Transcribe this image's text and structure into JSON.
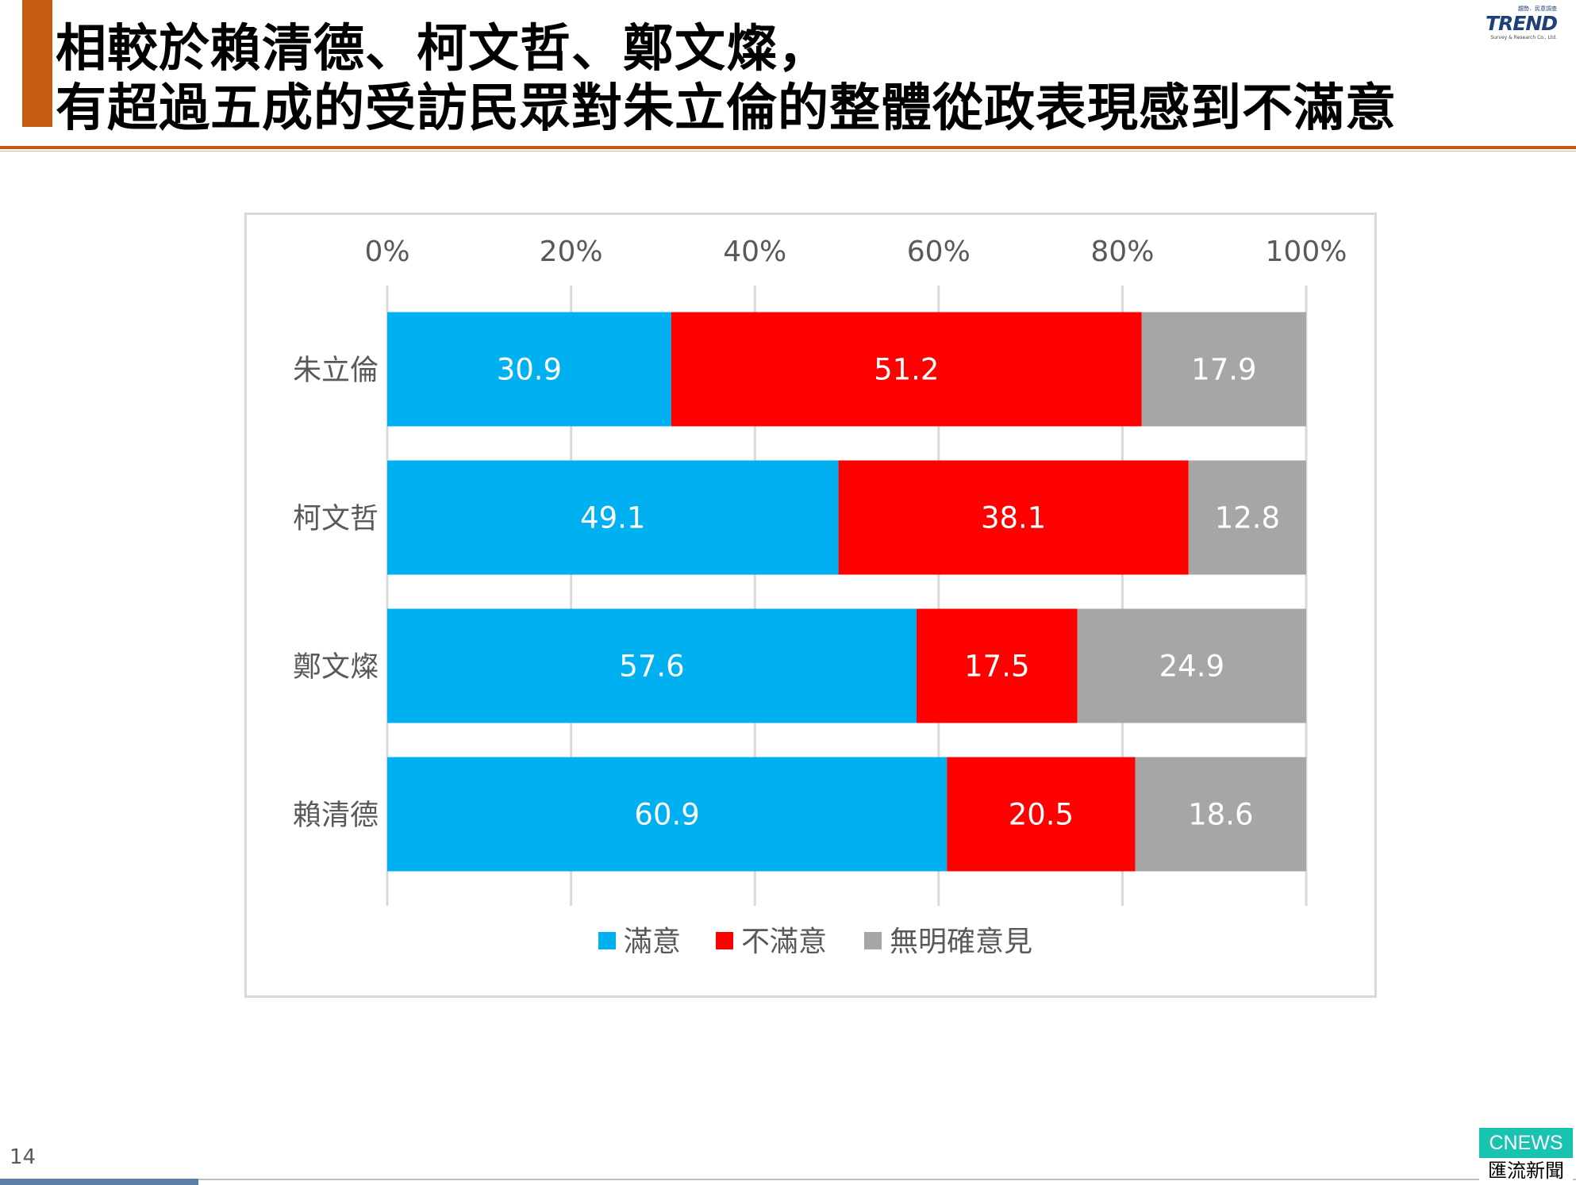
{
  "header": {
    "title_line1": "相較於賴清德、柯文哲、鄭文燦，",
    "title_line2": "有超過五成的受訪民眾對朱立倫的整體從政表現感到不滿意",
    "accent_color": "#c55a11"
  },
  "logo": {
    "top_text": "趨勢．民意調查",
    "name": "TREND",
    "subtitle": "Survey & Research Co., Ltd."
  },
  "footer": {
    "page_number": "14"
  },
  "watermark": {
    "top": "CNEWS",
    "bottom": "匯流新聞網"
  },
  "chart_data": {
    "type": "bar",
    "orientation": "horizontal",
    "stacked": true,
    "percent_scale": true,
    "categories": [
      "朱立倫",
      "柯文哲",
      "鄭文燦",
      "賴清德"
    ],
    "series": [
      {
        "name": "滿意",
        "color": "#00b0f0",
        "values": [
          30.9,
          49.1,
          57.6,
          60.9
        ]
      },
      {
        "name": "不滿意",
        "color": "#ff0000",
        "values": [
          51.2,
          38.1,
          17.5,
          20.5
        ]
      },
      {
        "name": "無明確意見",
        "color": "#a6a6a6",
        "values": [
          17.9,
          12.8,
          24.9,
          18.6
        ]
      }
    ],
    "x_ticks": [
      "0%",
      "20%",
      "40%",
      "60%",
      "80%",
      "100%"
    ],
    "xlim": [
      0,
      100
    ],
    "x_axis_position": "top",
    "grid": true,
    "data_labels": true,
    "legend_position": "bottom"
  }
}
